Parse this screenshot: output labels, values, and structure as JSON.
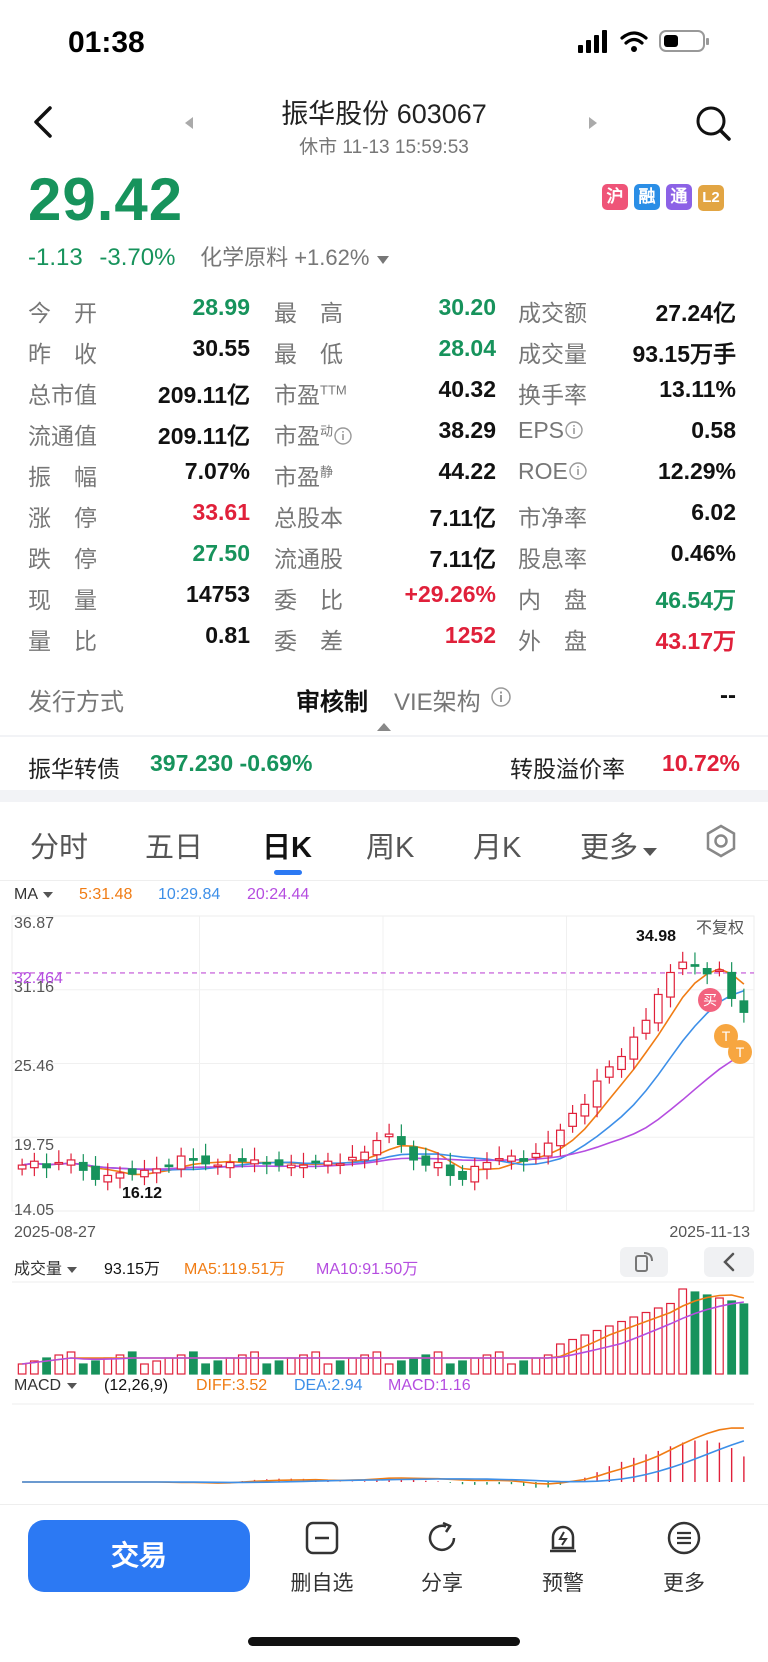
{
  "status_bar": {
    "time": "01:38"
  },
  "header": {
    "title": "振华股份 603067",
    "subtitle": "休市 11-13 15:59:53"
  },
  "quote": {
    "price": "29.42",
    "change": "-1.13",
    "change_pct": "-3.70%",
    "sector": "化学原料 +1.62%",
    "badges": [
      "沪",
      "融",
      "通",
      "L2"
    ]
  },
  "stats": [
    [
      {
        "l": "今　开",
        "v": "28.99",
        "c": "green"
      },
      {
        "l": "最　高",
        "v": "30.20",
        "c": "green"
      },
      {
        "l": "成交额",
        "v": "27.24亿",
        "c": "black"
      }
    ],
    [
      {
        "l": "昨　收",
        "v": "30.55",
        "c": "black"
      },
      {
        "l": "最　低",
        "v": "28.04",
        "c": "green"
      },
      {
        "l": "成交量",
        "v": "93.15万手",
        "c": "black"
      }
    ],
    [
      {
        "l": "总市值",
        "v": "209.11亿",
        "c": "black"
      },
      {
        "l": "市盈",
        "sup": "TTM",
        "v": "40.32",
        "c": "black"
      },
      {
        "l": "换手率",
        "v": "13.11%",
        "c": "black"
      }
    ],
    [
      {
        "l": "流通值",
        "v": "209.11亿",
        "c": "black"
      },
      {
        "l": "市盈",
        "sup": "动",
        "info": true,
        "v": "38.29",
        "c": "black"
      },
      {
        "l": "EPS",
        "info": true,
        "v": "0.58",
        "c": "black"
      }
    ],
    [
      {
        "l": "振　幅",
        "v": "7.07%",
        "c": "black"
      },
      {
        "l": "市盈",
        "sup": "静",
        "v": "44.22",
        "c": "black"
      },
      {
        "l": "ROE",
        "info": true,
        "v": "12.29%",
        "c": "black"
      }
    ],
    [
      {
        "l": "涨　停",
        "v": "33.61",
        "c": "red"
      },
      {
        "l": "总股本",
        "v": "7.11亿",
        "c": "black"
      },
      {
        "l": "市净率",
        "v": "6.02",
        "c": "black"
      }
    ],
    [
      {
        "l": "跌　停",
        "v": "27.50",
        "c": "green"
      },
      {
        "l": "流通股",
        "v": "7.11亿",
        "c": "black"
      },
      {
        "l": "股息率",
        "v": "0.46%",
        "c": "black"
      }
    ],
    [
      {
        "l": "现　量",
        "v": "14753",
        "c": "black"
      },
      {
        "l": "委　比",
        "v": "+29.26%",
        "c": "red"
      },
      {
        "l": "内　盘",
        "v": "46.54万",
        "c": "green"
      }
    ],
    [
      {
        "l": "量　比",
        "v": "0.81",
        "c": "black"
      },
      {
        "l": "委　差",
        "v": "1252",
        "c": "red"
      },
      {
        "l": "外　盘",
        "v": "43.17万",
        "c": "red"
      }
    ]
  ],
  "issue": {
    "label": "发行方式",
    "value": "审核制",
    "vie_label": "VIE架构",
    "vie_value": "--"
  },
  "bond": {
    "name": "振华转债",
    "value": "397.230 -0.69%",
    "premium_label": "转股溢价率",
    "premium_value": "10.72%"
  },
  "tabs": [
    "分时",
    "五日",
    "日K",
    "周K",
    "月K",
    "更多"
  ],
  "ma_legend": {
    "title": "MA",
    "ma5": "5:31.48",
    "ma10": "10:29.84",
    "ma20": "20:24.44"
  },
  "kline": {
    "y_labels": [
      "36.87",
      "31.16",
      "25.46",
      "19.75",
      "14.05"
    ],
    "dashed_label": "32.464",
    "high_label": "34.98",
    "low_label": "16.12",
    "adjust": "不复权",
    "start_date": "2025-08-27",
    "end_date": "2025-11-13",
    "buy_marker": "买",
    "t_marker": "T"
  },
  "volume": {
    "title": "成交量",
    "value": "93.15万",
    "ma5": "MA5:119.51万",
    "ma10": "MA10:91.50万"
  },
  "macd": {
    "title": "MACD",
    "params": "(12,26,9)",
    "diff": "DIFF:3.52",
    "dea": "DEA:2.94",
    "macd": "MACD:1.16"
  },
  "colors": {
    "up": "#e0203a",
    "down": "#17935c",
    "ma5": "#f07c14",
    "ma10": "#3d8fe8",
    "ma20": "#b54de0",
    "accent": "#2c79f3"
  },
  "chart_data": {
    "type": "candlestick",
    "x_range": [
      "2025-08-27",
      "2025-11-13"
    ],
    "ylim": [
      14.05,
      36.87
    ],
    "close_series": [
      17.6,
      17.9,
      17.4,
      17.8,
      18.0,
      17.2,
      16.5,
      16.8,
      17.0,
      16.9,
      17.2,
      17.3,
      17.5,
      18.3,
      18.0,
      17.7,
      17.6,
      17.8,
      17.9,
      18.0,
      17.7,
      17.6,
      17.6,
      17.6,
      17.8,
      17.9,
      17.7,
      18.2,
      18.6,
      19.5,
      20.0,
      19.2,
      18.0,
      17.6,
      17.8,
      16.8,
      16.5,
      17.5,
      17.8,
      18.1,
      18.3,
      17.9,
      18.5,
      19.3,
      20.3,
      21.6,
      22.3,
      24.1,
      25.2,
      26.0,
      27.5,
      28.8,
      30.8,
      32.5,
      33.3,
      33.0,
      32.4,
      32.7,
      30.5,
      29.42
    ]
  }
}
